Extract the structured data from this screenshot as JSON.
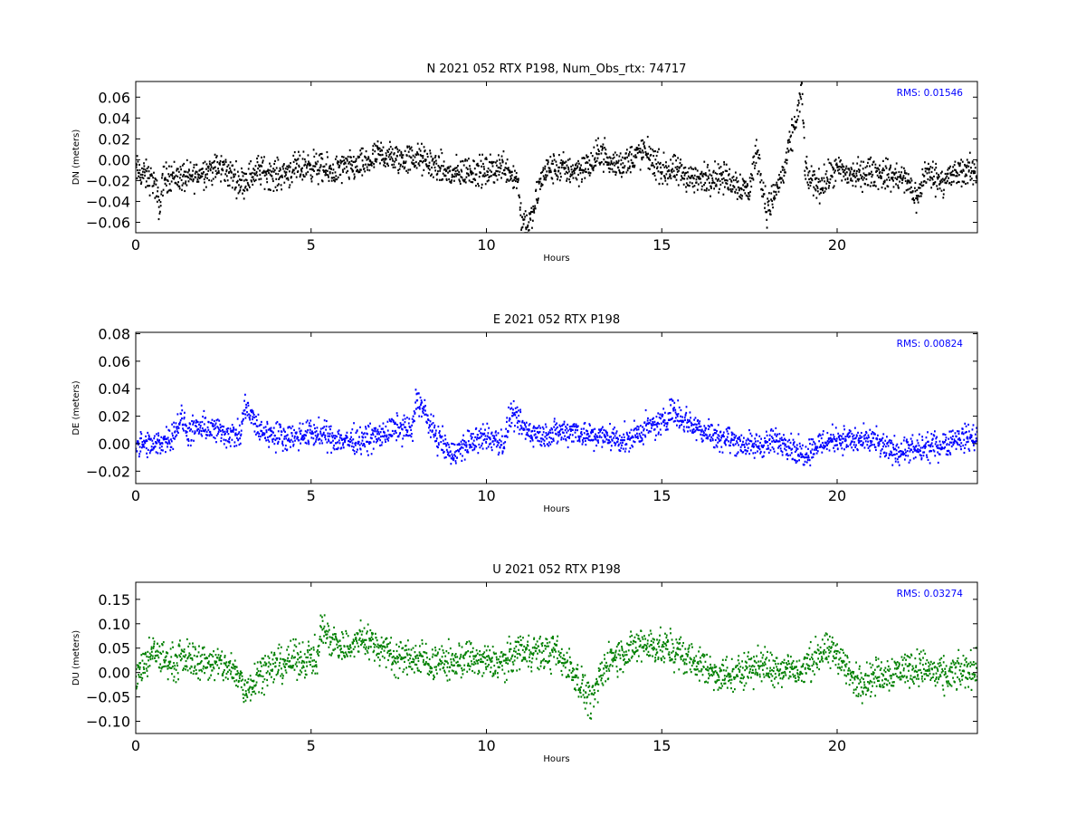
{
  "figure": {
    "background": "#ffffff"
  },
  "chart_data": [
    {
      "type": "scatter",
      "title": "N 2021 052 RTX  P198, Num_Obs_rtx: 74717",
      "xlabel": "Hours",
      "ylabel": "DN (meters)",
      "xlim": [
        0,
        24
      ],
      "ylim": [
        -0.07,
        0.075
      ],
      "xticks": [
        0,
        5,
        10,
        15,
        20
      ],
      "yticks": [
        -0.06,
        -0.04,
        -0.02,
        0.0,
        0.02,
        0.04,
        0.06
      ],
      "ytick_labels": [
        "−0.06",
        "−0.04",
        "−0.02",
        "0.00",
        "0.02",
        "0.04",
        "0.06"
      ],
      "color": "#000000",
      "rms_text": "RMS:  0.01546",
      "rms_color": "#0000ff",
      "grid": false,
      "series": [
        {
          "x": [
            0,
            0.25,
            0.5,
            0.7,
            0.75,
            1,
            1.5,
            2,
            2.5,
            3,
            3.5,
            4,
            4.5,
            5,
            5.5,
            6,
            6.5,
            7,
            7.5,
            8,
            8.5,
            9,
            9.5,
            10,
            10.5,
            10.9,
            11.0,
            11.3,
            11.5,
            11.7,
            12,
            12.5,
            13,
            13.3,
            13.5,
            14,
            14.3,
            14.5,
            15,
            15.5,
            16,
            16.5,
            17,
            17.5,
            17.7,
            18,
            18.5,
            18.9,
            19.0,
            19.1,
            19.5,
            20,
            20.5,
            21,
            21.5,
            22,
            22.3,
            22.5,
            23,
            23.5,
            24
          ],
          "y": [
            -0.01,
            -0.015,
            -0.02,
            -0.048,
            -0.02,
            -0.015,
            -0.018,
            -0.01,
            -0.008,
            -0.022,
            -0.01,
            -0.015,
            -0.01,
            -0.005,
            -0.012,
            -0.008,
            -0.005,
            0.005,
            0,
            0.002,
            -0.005,
            -0.015,
            -0.01,
            -0.012,
            -0.005,
            -0.02,
            -0.058,
            -0.06,
            -0.025,
            -0.01,
            -0.008,
            -0.01,
            -0.005,
            0.01,
            -0.005,
            -0.002,
            0.005,
            0.008,
            -0.01,
            -0.012,
            -0.02,
            -0.015,
            -0.02,
            -0.03,
            0.01,
            -0.05,
            -0.01,
            0.05,
            0.065,
            -0.015,
            -0.025,
            -0.01,
            -0.015,
            -0.012,
            -0.015,
            -0.02,
            -0.038,
            -0.012,
            -0.02,
            -0.012,
            -0.01
          ],
          "spread": 0.012
        }
      ]
    },
    {
      "type": "scatter",
      "title": "E 2021 052 RTX  P198",
      "xlabel": "Hours",
      "ylabel": "DE (meters)",
      "xlim": [
        0,
        24
      ],
      "ylim": [
        -0.029,
        0.081
      ],
      "xticks": [
        0,
        5,
        10,
        15,
        20
      ],
      "yticks": [
        -0.02,
        0.0,
        0.02,
        0.04,
        0.06,
        0.08
      ],
      "ytick_labels": [
        "−0.02",
        "0.00",
        "0.02",
        "0.04",
        "0.06",
        "0.08"
      ],
      "color": "#0000ff",
      "rms_text": "RMS:  0.00824",
      "rms_color": "#0000ff",
      "grid": false,
      "series": [
        {
          "x": [
            0,
            0.5,
            1,
            1.3,
            1.5,
            2,
            2.5,
            3,
            3.1,
            3.5,
            4,
            4.5,
            5,
            5.5,
            6,
            6.5,
            7,
            7.5,
            7.9,
            8,
            8.5,
            9,
            9.5,
            10,
            10.5,
            10.7,
            11,
            11.5,
            12,
            12.5,
            13,
            13.5,
            14,
            14.5,
            15,
            15.3,
            15.5,
            16,
            16.5,
            17,
            17.5,
            18,
            18.5,
            19,
            19.5,
            20,
            20.5,
            21,
            21.5,
            22,
            22.5,
            23,
            23.5,
            24
          ],
          "y": [
            0,
            -0.002,
            0.005,
            0.018,
            0.008,
            0.012,
            0.008,
            0.005,
            0.028,
            0.01,
            0.006,
            0.005,
            0.008,
            0.005,
            0.002,
            0.003,
            0.006,
            0.012,
            0.01,
            0.035,
            0.008,
            -0.008,
            0,
            0.005,
            0,
            0.022,
            0.012,
            0.006,
            0.008,
            0.01,
            0.005,
            0.005,
            0.002,
            0.01,
            0.015,
            0.025,
            0.02,
            0.012,
            0.006,
            0.003,
            -0.002,
            0,
            0.002,
            -0.008,
            0,
            0.004,
            0.002,
            0.002,
            -0.005,
            -0.005,
            -0.004,
            0,
            0.004,
            0.005
          ],
          "spread": 0.008
        }
      ]
    },
    {
      "type": "scatter",
      "title": "U 2021 052 RTX  P198",
      "xlabel": "Hours",
      "ylabel": "DU (meters)",
      "xlim": [
        0,
        24
      ],
      "ylim": [
        -0.125,
        0.185
      ],
      "xticks": [
        0,
        5,
        10,
        15,
        20
      ],
      "yticks": [
        -0.1,
        -0.05,
        0.0,
        0.05,
        0.1,
        0.15
      ],
      "ytick_labels": [
        "−0.10",
        "−0.05",
        "0.00",
        "0.05",
        "0.10",
        "0.15"
      ],
      "color": "#008000",
      "rms_text": "RMS:  0.03274",
      "rms_color": "#0000ff",
      "grid": false,
      "series": [
        {
          "x": [
            0,
            0.3,
            0.5,
            1,
            1.5,
            2,
            2.5,
            3,
            3.1,
            3.5,
            4,
            4.5,
            5,
            5.2,
            5.3,
            5.5,
            6,
            6.5,
            7,
            7.5,
            8,
            8.5,
            9,
            9.5,
            10,
            10.5,
            11,
            11.5,
            12,
            12.5,
            13,
            13.5,
            14,
            14.5,
            15,
            15.5,
            16,
            16.5,
            17,
            17.5,
            18,
            18.5,
            19,
            19.5,
            20,
            20.5,
            21,
            21.5,
            22,
            22.5,
            23,
            23.5,
            24
          ],
          "y": [
            -0.01,
            0.02,
            0.04,
            0.02,
            0.03,
            0.02,
            0.015,
            -0.01,
            -0.04,
            0,
            0.015,
            0.025,
            0.03,
            0.03,
            0.1,
            0.07,
            0.05,
            0.07,
            0.05,
            0.03,
            0.03,
            0.02,
            0.02,
            0.03,
            0.02,
            0.02,
            0.05,
            0.04,
            0.04,
            0,
            -0.06,
            0.03,
            0.04,
            0.06,
            0.05,
            0.04,
            0.02,
            0,
            -0.01,
            0.015,
            0.01,
            0.01,
            0,
            0.04,
            0.04,
            -0.02,
            -0.01,
            0,
            0.01,
            0.01,
            -0.01,
            0,
            0.01
          ],
          "spread": 0.03
        }
      ]
    }
  ]
}
